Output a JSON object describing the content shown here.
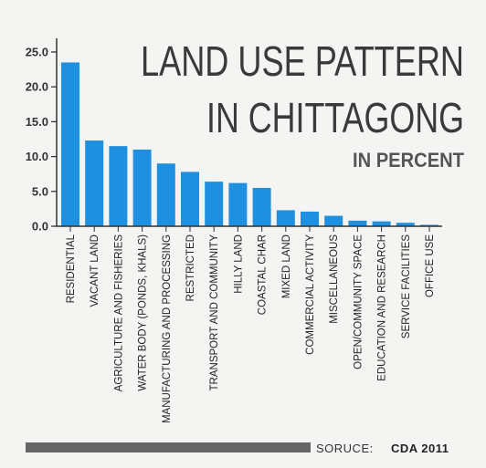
{
  "chart_data": {
    "type": "bar",
    "title_lines": [
      "LAND USE PATTERN",
      "IN CHITTAGONG"
    ],
    "subtitle": "IN PERCENT",
    "xlabel": "",
    "ylabel": "",
    "ylim": [
      0,
      26
    ],
    "yticks": [
      "25.0",
      "20.0",
      "15.0",
      "10.0",
      "5.0",
      "0.0"
    ],
    "ytick_values": [
      25,
      20,
      15,
      10,
      5,
      0
    ],
    "grid": false,
    "bar_color": "#1f8fe0",
    "categories": [
      "RESIDENTIAL",
      "VACANT LAND",
      "AGRICULTURE AND FISHERIES",
      "WATER BODY (PONDS, KHALS)",
      "MANUFACTURING AND PROCESSING",
      "RESTRICTED",
      "TRANSPORT AND COMMUNITY",
      "HILLY LAND",
      "COASTAL CHAR",
      "MIXED LAND",
      "COMMERCIAL ACTIVITY",
      "MISCELLANEOUS",
      "OPEN/COMMUNITY SPACE",
      "EDUCATION AND RESEARCH",
      "SERVICE FACILITIES",
      "OFFICE USE"
    ],
    "values": [
      23.5,
      12.3,
      11.5,
      11.0,
      9.0,
      7.8,
      6.4,
      6.2,
      5.5,
      2.3,
      2.1,
      1.5,
      0.8,
      0.7,
      0.5,
      0.2
    ]
  },
  "source": {
    "label": "SORUCE:",
    "value": "CDA 2011"
  }
}
